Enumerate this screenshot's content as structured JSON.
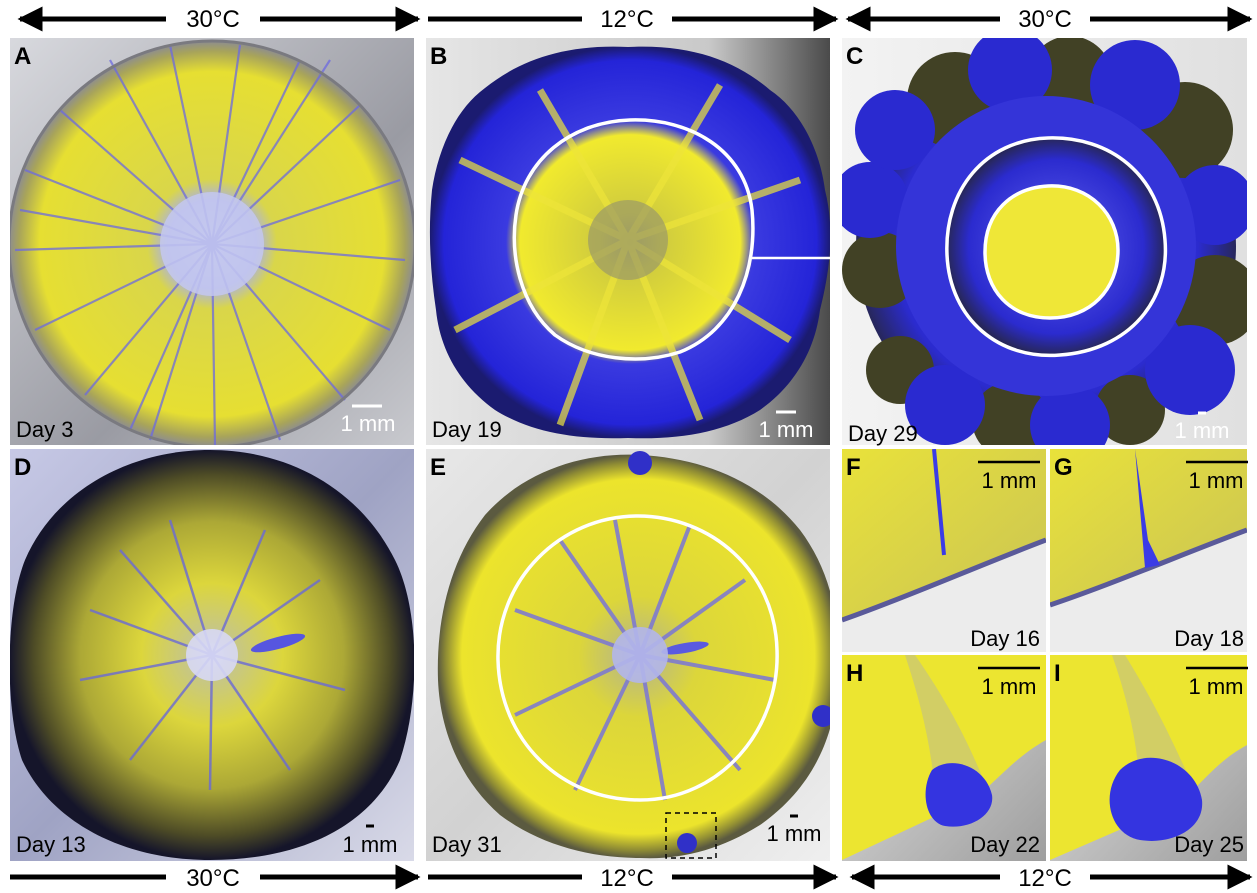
{
  "temps": {
    "top_a": "30°C",
    "top_b": "12°C",
    "top_c": "30°C",
    "bottom_d": "30°C",
    "bottom_e": "12°C",
    "bottom_fi": "12°C"
  },
  "panels": {
    "A": {
      "letter": "A",
      "day": "Day 3",
      "scale": "1 mm"
    },
    "B": {
      "letter": "B",
      "day": "Day 19",
      "scale": "1 mm"
    },
    "C": {
      "letter": "C",
      "day": "Day 29",
      "scale": "1 mm"
    },
    "D": {
      "letter": "D",
      "day": "Day 13",
      "scale": "1 mm"
    },
    "E": {
      "letter": "E",
      "day": "Day 31",
      "scale": "1 mm"
    },
    "F": {
      "letter": "F",
      "day": "Day 16",
      "scale": "1 mm"
    },
    "G": {
      "letter": "G",
      "day": "Day 18",
      "scale": "1 mm"
    },
    "H": {
      "letter": "H",
      "day": "Day 22",
      "scale": "1 mm"
    },
    "I": {
      "letter": "I",
      "day": "Day 25",
      "scale": "1 mm"
    }
  },
  "colors": {
    "yellow": "#e8e23a",
    "blue": "#2a2ad8",
    "light_blue": "#aab4ee",
    "dark_olive": "#3a3a20",
    "background_gray": "#bfc0c6"
  }
}
